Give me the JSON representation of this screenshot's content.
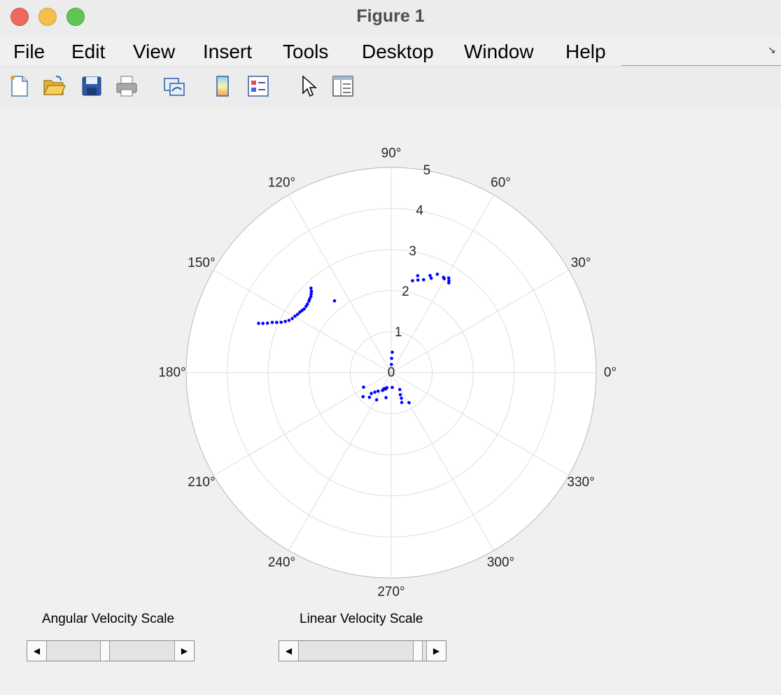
{
  "window": {
    "title": "Figure 1"
  },
  "menu": {
    "items": [
      "File",
      "Edit",
      "View",
      "Insert",
      "Tools",
      "Desktop",
      "Window",
      "Help"
    ]
  },
  "toolbar": {
    "icons": [
      "new-figure-icon",
      "open-file-icon",
      "save-icon",
      "print-icon",
      "link-plot-icon",
      "colorbar-icon",
      "legend-icon",
      "pointer-icon",
      "property-editor-icon"
    ]
  },
  "chart_data": {
    "type": "scatter",
    "coordinate_system": "polar",
    "r_ticks": [
      "0",
      "1",
      "2",
      "3",
      "4",
      "5"
    ],
    "r_lim": [
      0,
      5
    ],
    "theta_ticks": [
      "0°",
      "30°",
      "60°",
      "90°",
      "120°",
      "150°",
      "180°",
      "210°",
      "240°",
      "270°",
      "300°",
      "330°"
    ],
    "marker_color": "#0000ff",
    "grid": true,
    "series": [
      {
        "points_theta_deg": [
          159.6,
          159.0,
          158.2,
          157.1,
          156.3,
          155.4,
          154.2,
          152.9,
          151.3,
          149.6,
          148.1,
          146.5,
          145.1,
          143.8,
          142.1,
          140.7,
          139.0,
          137.9,
          136.5,
          135.4,
          134.4,
          133.5,
          128.3,
          88.7,
          88.2,
          87.0,
          76.9,
          74.7,
          73.9,
          70.8,
          68.2,
          67.0,
          64.9,
          61.2,
          60.6,
          58.7,
          57.9,
          57.3,
          253.7,
          252.2,
          250.5,
          247.8,
          245.3,
          244.0,
          234.6,
          230.0,
          226.1,
          207.4,
          274.0,
          258.2,
          241.8,
          228.4,
          220.4,
          296.9,
          292.7,
          291.9,
          289.5,
          300.8
        ],
        "points_r": [
          3.45,
          3.35,
          3.25,
          3.15,
          3.05,
          2.95,
          2.87,
          2.8,
          2.75,
          2.72,
          2.69,
          2.67,
          2.65,
          2.63,
          2.63,
          2.64,
          2.66,
          2.68,
          2.7,
          2.74,
          2.78,
          2.84,
          2.23,
          0.2,
          0.35,
          0.5,
          2.3,
          2.45,
          2.35,
          2.4,
          2.55,
          2.5,
          2.65,
          2.65,
          2.63,
          2.7,
          2.65,
          2.6,
          0.38,
          0.4,
          0.42,
          0.42,
          0.44,
          0.48,
          0.55,
          0.62,
          0.7,
          0.76,
          0.36,
          0.62,
          0.75,
          0.8,
          0.9,
          0.46,
          0.58,
          0.67,
          0.77,
          0.85
        ]
      }
    ]
  },
  "controls": {
    "angular": {
      "label": "Angular Velocity Scale",
      "value": 0.45
    },
    "linear": {
      "label": "Linear Velocity Scale",
      "value": 0.97
    }
  }
}
